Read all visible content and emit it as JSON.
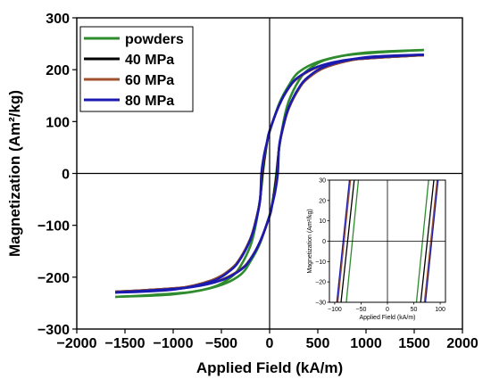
{
  "chart_data": [
    {
      "type": "line",
      "panel": "main",
      "xlabel": "Applied Field (kA/m)",
      "ylabel": "Magnetization (Am²/kg)",
      "xlim": [
        -2000,
        2000
      ],
      "ylim": [
        -300,
        300
      ],
      "x_ticks": [
        -2000,
        -1500,
        -1000,
        -500,
        0,
        500,
        1000,
        1500,
        2000
      ],
      "y_ticks": [
        -300,
        -200,
        -100,
        0,
        100,
        200,
        300
      ],
      "x_tick_labels": [
        "−2000",
        "−1500",
        "−1000",
        "−500",
        "0",
        "500",
        "1000",
        "1500",
        "2000"
      ],
      "y_tick_labels": [
        "−300",
        "−200",
        "−100",
        "0",
        "100",
        "200",
        "300"
      ],
      "grid": false,
      "legend_position": "top-left",
      "series": [
        {
          "name": "powders",
          "color": "#2e8b2e",
          "upper": [
            [
              -1600,
              -238
            ],
            [
              -1000,
              -233
            ],
            [
              -600,
              -220
            ],
            [
              -400,
              -200
            ],
            [
              -300,
              -178
            ],
            [
              -200,
              -140
            ],
            [
              -150,
              -105
            ],
            [
              -100,
              -50
            ],
            [
              -70,
              0
            ],
            [
              -50,
              30
            ],
            [
              -25,
              60
            ],
            [
              0,
              80
            ],
            [
              100,
              135
            ],
            [
              200,
              170
            ],
            [
              300,
              195
            ],
            [
              500,
              215
            ],
            [
              800,
              228
            ],
            [
              1200,
              234
            ],
            [
              1600,
              238
            ]
          ],
          "lower": [
            [
              1600,
              238
            ],
            [
              1000,
              233
            ],
            [
              600,
              220
            ],
            [
              400,
              200
            ],
            [
              300,
              178
            ],
            [
              200,
              140
            ],
            [
              150,
              105
            ],
            [
              100,
              50
            ],
            [
              70,
              0
            ],
            [
              50,
              -30
            ],
            [
              25,
              -60
            ],
            [
              0,
              -80
            ],
            [
              -100,
              -135
            ],
            [
              -200,
              -170
            ],
            [
              -300,
              -195
            ],
            [
              -500,
              -215
            ],
            [
              -800,
              -228
            ],
            [
              -1200,
              -234
            ],
            [
              -1600,
              -238
            ]
          ]
        },
        {
          "name": "40 MPa",
          "color": "#000000",
          "upper": [
            [
              -1600,
              -229
            ],
            [
              -1000,
              -223
            ],
            [
              -600,
              -206
            ],
            [
              -400,
              -184
            ],
            [
              -300,
              -162
            ],
            [
              -200,
              -126
            ],
            [
              -150,
              -96
            ],
            [
              -100,
              -52
            ],
            [
              -75,
              0
            ],
            [
              -50,
              35
            ],
            [
              -25,
              62
            ],
            [
              0,
              82
            ],
            [
              100,
              132
            ],
            [
              200,
              165
            ],
            [
              300,
              185
            ],
            [
              500,
              205
            ],
            [
              800,
              218
            ],
            [
              1200,
              224
            ],
            [
              1600,
              228
            ]
          ],
          "lower": [
            [
              1600,
              228
            ],
            [
              1000,
              223
            ],
            [
              600,
              206
            ],
            [
              400,
              184
            ],
            [
              300,
              162
            ],
            [
              200,
              126
            ],
            [
              150,
              96
            ],
            [
              100,
              52
            ],
            [
              75,
              0
            ],
            [
              50,
              -35
            ],
            [
              25,
              -62
            ],
            [
              0,
              -82
            ],
            [
              -100,
              -132
            ],
            [
              -200,
              -165
            ],
            [
              -300,
              -185
            ],
            [
              -500,
              -205
            ],
            [
              -800,
              -218
            ],
            [
              -1200,
              -224
            ],
            [
              -1600,
              -228
            ]
          ]
        },
        {
          "name": "60 MPa",
          "color": "#a0522d",
          "upper": [
            [
              -1600,
              -229
            ],
            [
              -1000,
              -223
            ],
            [
              -600,
              -206
            ],
            [
              -400,
              -184
            ],
            [
              -300,
              -162
            ],
            [
              -200,
              -126
            ],
            [
              -150,
              -96
            ],
            [
              -100,
              -52
            ],
            [
              -82,
              0
            ],
            [
              -55,
              35
            ],
            [
              -25,
              62
            ],
            [
              0,
              82
            ],
            [
              100,
              132
            ],
            [
              200,
              165
            ],
            [
              300,
              185
            ],
            [
              500,
              205
            ],
            [
              800,
              218
            ],
            [
              1200,
              224
            ],
            [
              1600,
              228
            ]
          ],
          "lower": [
            [
              1600,
              228
            ],
            [
              1000,
              223
            ],
            [
              600,
              206
            ],
            [
              400,
              184
            ],
            [
              300,
              162
            ],
            [
              200,
              126
            ],
            [
              150,
              96
            ],
            [
              100,
              52
            ],
            [
              82,
              0
            ],
            [
              55,
              -35
            ],
            [
              25,
              -62
            ],
            [
              0,
              -82
            ],
            [
              -100,
              -132
            ],
            [
              -200,
              -165
            ],
            [
              -300,
              -185
            ],
            [
              -500,
              -205
            ],
            [
              -800,
              -218
            ],
            [
              -1200,
              -224
            ],
            [
              -1600,
              -228
            ]
          ]
        },
        {
          "name": "80 MPa",
          "color": "#1a1ab0",
          "upper": [
            [
              -1600,
              -230
            ],
            [
              -1000,
              -224
            ],
            [
              -600,
              -208
            ],
            [
              -400,
              -186
            ],
            [
              -300,
              -164
            ],
            [
              -200,
              -128
            ],
            [
              -150,
              -98
            ],
            [
              -100,
              -54
            ],
            [
              -85,
              0
            ],
            [
              -58,
              35
            ],
            [
              -25,
              62
            ],
            [
              0,
              82
            ],
            [
              100,
              132
            ],
            [
              200,
              166
            ],
            [
              300,
              186
            ],
            [
              500,
              206
            ],
            [
              800,
              219
            ],
            [
              1200,
              225
            ],
            [
              1600,
              229
            ]
          ],
          "lower": [
            [
              1600,
              229
            ],
            [
              1000,
              224
            ],
            [
              600,
              208
            ],
            [
              400,
              186
            ],
            [
              300,
              164
            ],
            [
              200,
              128
            ],
            [
              150,
              98
            ],
            [
              100,
              54
            ],
            [
              85,
              0
            ],
            [
              58,
              -35
            ],
            [
              25,
              -62
            ],
            [
              0,
              -82
            ],
            [
              -100,
              -132
            ],
            [
              -200,
              -166
            ],
            [
              -300,
              -186
            ],
            [
              -500,
              -206
            ],
            [
              -800,
              -219
            ],
            [
              -1200,
              -225
            ],
            [
              -1600,
              -229
            ]
          ]
        }
      ]
    },
    {
      "type": "line",
      "panel": "inset",
      "xlabel": "Applied Field (kA/m)",
      "ylabel": "Magnetization (Am²/kg)",
      "xlim": [
        -110,
        110
      ],
      "ylim": [
        -30,
        30
      ],
      "x_ticks": [
        -100,
        -50,
        0,
        50,
        100
      ],
      "y_ticks": [
        -30,
        -20,
        -10,
        0,
        10,
        20,
        30
      ],
      "x_tick_labels": [
        "−100",
        "−50",
        "0",
        "50",
        "100"
      ],
      "y_tick_labels": [
        "−30",
        "−20",
        "−10",
        "0",
        "10",
        "20",
        "30"
      ],
      "grid": false,
      "series": [
        {
          "name": "powders",
          "color": "#2e8b2e",
          "left": [
            [
              -78,
              -30
            ],
            [
              -55,
              30
            ]
          ],
          "right": [
            [
              55,
              -30
            ],
            [
              78,
              30
            ]
          ]
        },
        {
          "name": "40 MPa",
          "color": "#000000",
          "left": [
            [
              -88,
              -30
            ],
            [
              -63,
              30
            ]
          ],
          "right": [
            [
              63,
              -30
            ],
            [
              88,
              30
            ]
          ]
        },
        {
          "name": "60 MPa",
          "color": "#a0522d",
          "left": [
            [
              -94,
              -30
            ],
            [
              -70,
              30
            ]
          ],
          "right": [
            [
              70,
              -30
            ],
            [
              94,
              30
            ]
          ]
        },
        {
          "name": "80 MPa",
          "color": "#1a1ab0",
          "left": [
            [
              -96,
              -30
            ],
            [
              -72,
              30
            ]
          ],
          "right": [
            [
              72,
              -30
            ],
            [
              96,
              30
            ]
          ]
        }
      ]
    }
  ]
}
